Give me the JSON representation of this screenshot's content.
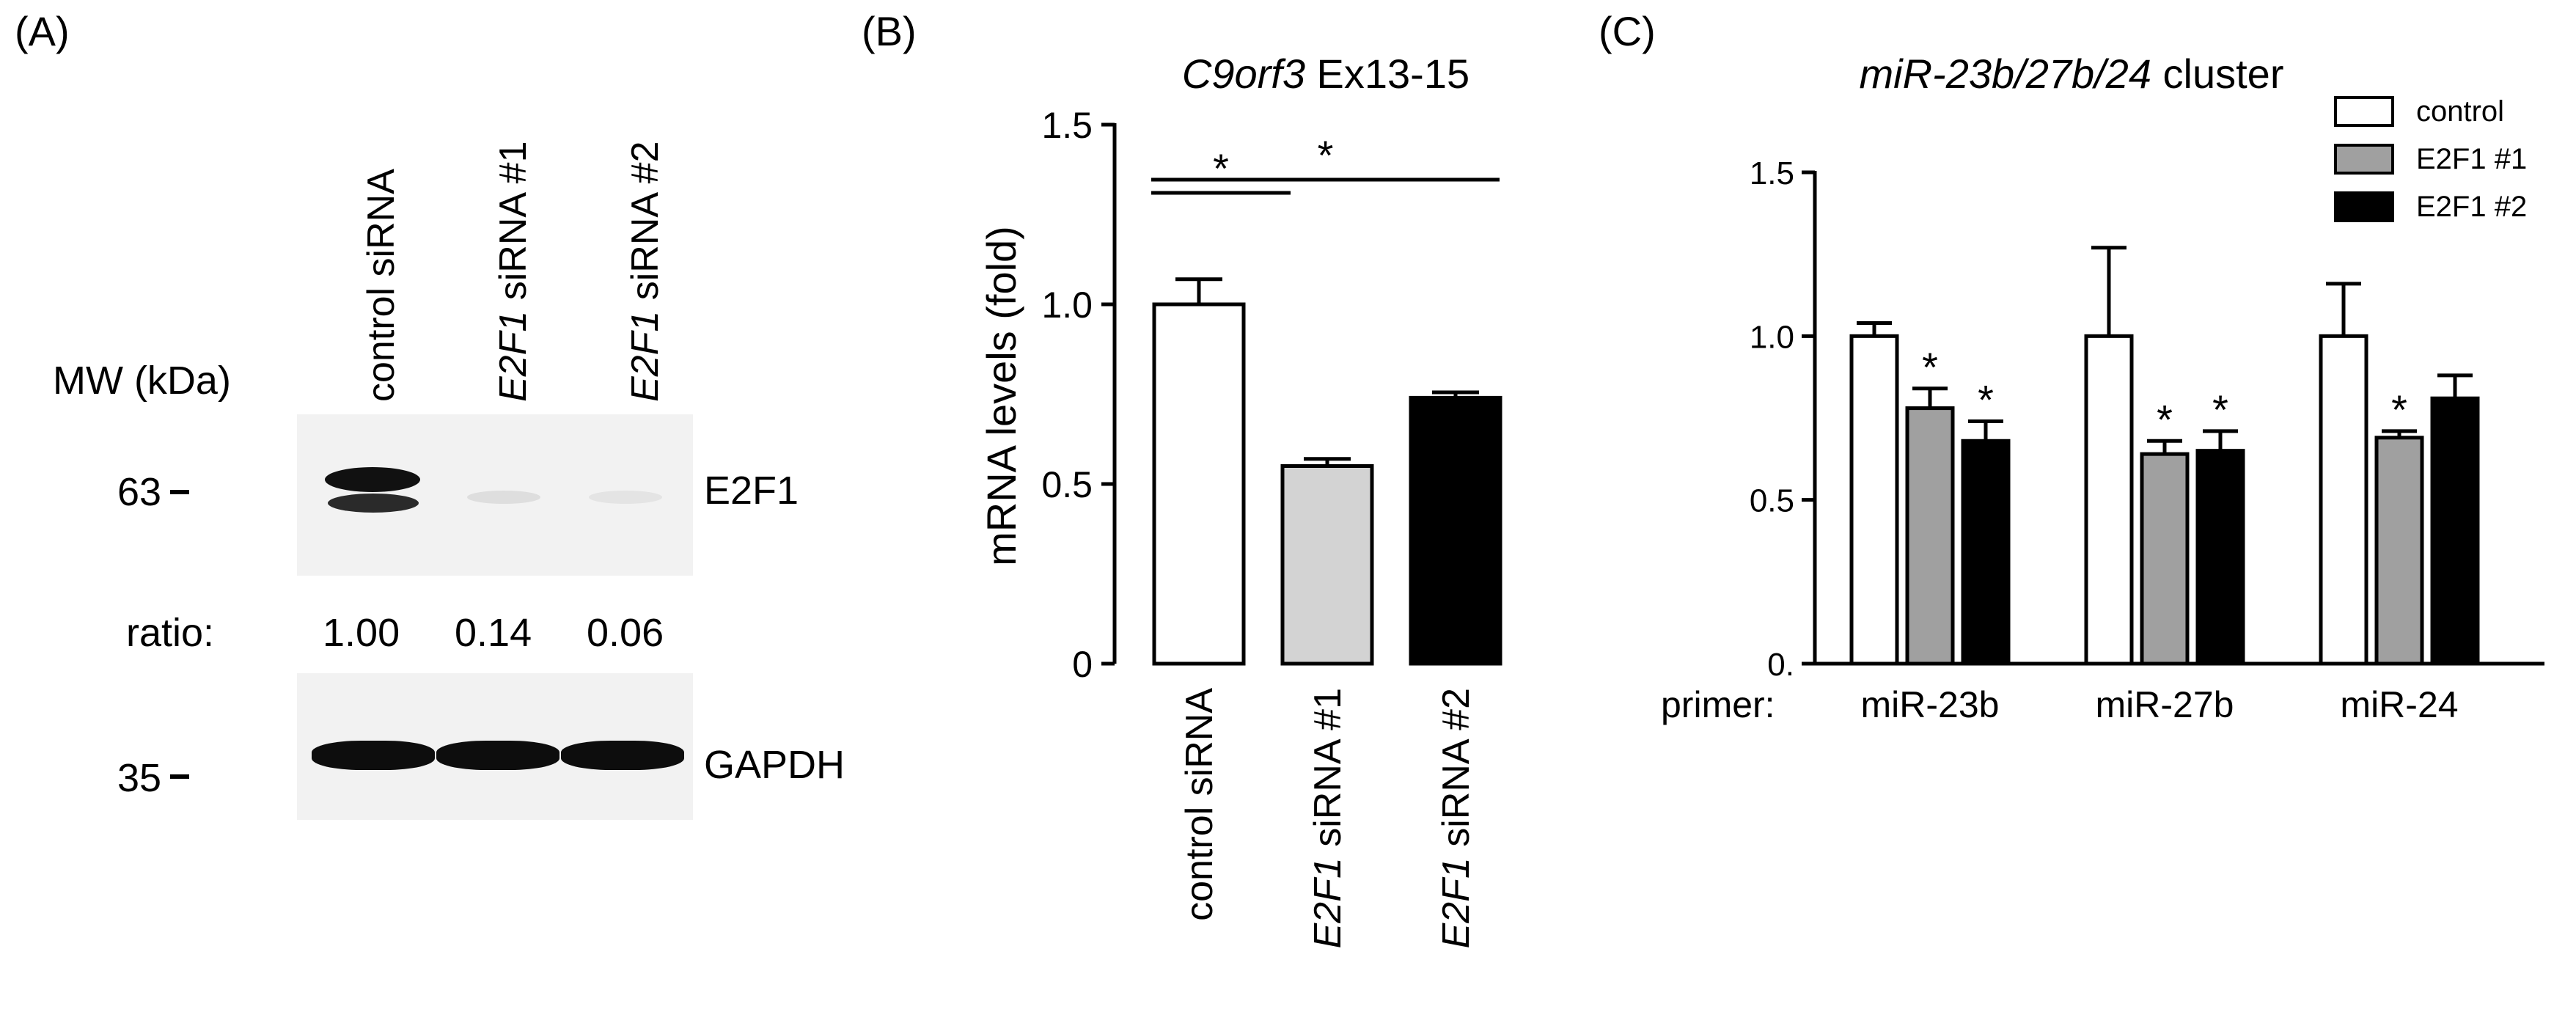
{
  "panelA": {
    "label": "(A)",
    "mw_label": "MW (kDa)",
    "lanes": [
      {
        "italic": "",
        "rest": "control siRNA"
      },
      {
        "italic": "E2F1",
        "rest": " siRNA #1"
      },
      {
        "italic": "E2F1",
        "rest": " siRNA #2"
      }
    ],
    "markers": {
      "upper": "63",
      "lower": "35"
    },
    "bands": {
      "top": "E2F1",
      "bottom": "GAPDH"
    },
    "ratio_label": "ratio:",
    "ratios": [
      "1.00",
      "0.14",
      "0.06"
    ],
    "ratio_values": [
      1.0,
      0.14,
      0.06
    ]
  },
  "chart_data": [
    {
      "panel": "(B)",
      "type": "bar",
      "title_italic": "C9orf3",
      "title_rest": " Ex13-15",
      "ylabel": "mRNA levels (fold)",
      "ylim": [
        0,
        1.5
      ],
      "yticks": [
        "0",
        "0.5",
        "1.0",
        "1.5"
      ],
      "categories": [
        {
          "italic": "",
          "rest": "control siRNA"
        },
        {
          "italic": "E2F1",
          "rest": " siRNA #1"
        },
        {
          "italic": "E2F1",
          "rest": " siRNA #2"
        }
      ],
      "values": [
        1.0,
        0.55,
        0.74
      ],
      "errors": [
        0.07,
        0.02,
        0.015
      ],
      "colors": [
        "#ffffff",
        "#d3d3d3",
        "#000000"
      ],
      "significance": [
        {
          "from": 0,
          "to": 1,
          "label": "*"
        },
        {
          "from": 0,
          "to": 2,
          "label": "*"
        }
      ]
    },
    {
      "panel": "(C)",
      "type": "bar",
      "title_italic": "miR-23b/27b/24",
      "title_rest": " cluster",
      "ylim": [
        0,
        1.5
      ],
      "yticks": [
        "0.",
        "0.5",
        "1.0",
        "1.5"
      ],
      "primer_label": "primer:",
      "categories": [
        "miR-23b",
        "miR-27b",
        "miR-24"
      ],
      "legend_position": "top-right",
      "series": [
        {
          "name": "control",
          "color": "#ffffff",
          "values": [
            1.0,
            1.0,
            1.0
          ],
          "errors": [
            0.04,
            0.27,
            0.16
          ],
          "stars": [
            "",
            "",
            ""
          ]
        },
        {
          "name": "E2F1 #1",
          "color": "#a0a0a0",
          "values": [
            0.78,
            0.64,
            0.69
          ],
          "errors": [
            0.06,
            0.04,
            0.02
          ],
          "stars": [
            "*",
            "*",
            "*"
          ]
        },
        {
          "name": "E2F1 #2",
          "color": "#000000",
          "values": [
            0.68,
            0.65,
            0.81
          ],
          "errors": [
            0.06,
            0.06,
            0.07
          ],
          "stars": [
            "*",
            "*",
            ""
          ]
        }
      ]
    }
  ]
}
